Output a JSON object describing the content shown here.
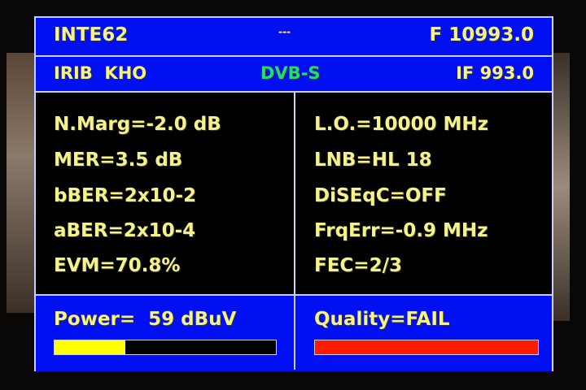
{
  "header": {
    "satellite": "INTE62",
    "center": "---",
    "frequency": "F 10993.0",
    "channel": "IRIB  KHO",
    "standard": "DVB-S",
    "if_freq": "IF 993.0"
  },
  "left": [
    "N.Marg=-2.0 dB",
    "MER=3.5 dB",
    "bBER=2x10-2",
    "aBER=2x10-4",
    "EVM=70.8%"
  ],
  "right": [
    "L.O.=10000 MHz",
    "LNB=HL 18",
    "DiSEqC=OFF",
    "FrqErr=-0.9 MHz",
    "FEC=2/3"
  ],
  "power": {
    "label": "Power=  59 dBuV",
    "level_percent": 32,
    "color": "#ffff00"
  },
  "quality": {
    "label": "Quality=FAIL",
    "level_percent": 100,
    "color": "#ff1a00"
  }
}
